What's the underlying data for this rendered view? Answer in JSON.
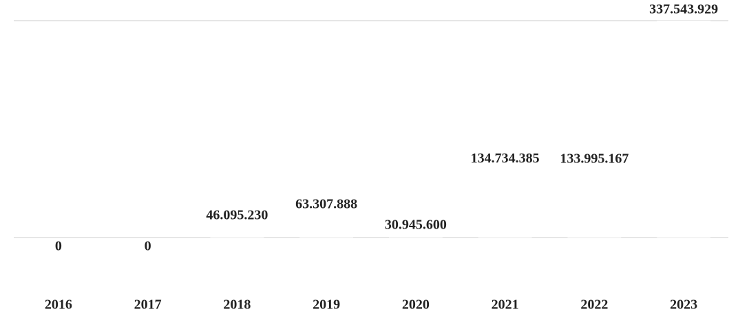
{
  "chart_data": {
    "type": "bar",
    "categories": [
      "2016",
      "2017",
      "2018",
      "2019",
      "2020",
      "2021",
      "2022",
      "2023"
    ],
    "values": [
      0,
      0,
      46095230,
      63307888,
      30945600,
      134734385,
      133995167,
      337543929
    ],
    "value_labels": [
      "0",
      "0",
      "46.095.230",
      "63.307.888",
      "30.945.600",
      "134.734.385",
      "133.995.167",
      "337.543.929"
    ],
    "color": "#ffffff",
    "ylim": [
      0,
      337543929
    ]
  }
}
